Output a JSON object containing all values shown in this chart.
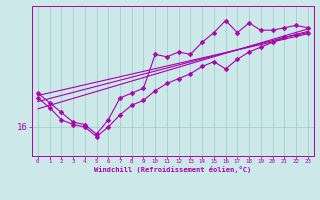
{
  "bg_color": "#cce8e8",
  "line_color": "#aa00aa",
  "xlabel": "Windchill (Refroidissement éolien,°C)",
  "ylabel_tick": "16",
  "xlim": [
    -0.5,
    23.5
  ],
  "ylim": [
    14.8,
    21.0
  ],
  "ytick_val": 16,
  "grid_color": "#99cccc",
  "line_width": 0.8,
  "marker": "D",
  "marker_size": 2.5,
  "trend1_x": [
    0,
    23
  ],
  "trend1_y": [
    17.3,
    19.85
  ],
  "trend2_x": [
    0,
    23
  ],
  "trend2_y": [
    17.05,
    19.95
  ],
  "trend3_x": [
    0,
    23
  ],
  "trend3_y": [
    16.75,
    20.05
  ],
  "data_line1_x": [
    0,
    1,
    2,
    3,
    4,
    5,
    6,
    7,
    8,
    9,
    10,
    11,
    12,
    13,
    14,
    15,
    16,
    17,
    18,
    19,
    20,
    21,
    22,
    23
  ],
  "data_line1_y": [
    17.4,
    17.0,
    16.6,
    16.2,
    16.1,
    15.7,
    16.3,
    17.2,
    17.4,
    17.6,
    19.0,
    18.9,
    19.1,
    19.0,
    19.5,
    19.9,
    20.4,
    19.9,
    20.3,
    20.0,
    20.0,
    20.1,
    20.2,
    20.1
  ],
  "data_line2_x": [
    0,
    1,
    2,
    3,
    4,
    5,
    6,
    7,
    8,
    9,
    10,
    11,
    12,
    13,
    14,
    15,
    16,
    17,
    18,
    19,
    20,
    21,
    22,
    23
  ],
  "data_line2_y": [
    17.2,
    16.8,
    16.3,
    16.1,
    16.0,
    15.6,
    16.0,
    16.5,
    16.9,
    17.1,
    17.5,
    17.8,
    18.0,
    18.2,
    18.5,
    18.7,
    18.4,
    18.8,
    19.1,
    19.3,
    19.5,
    19.7,
    19.8,
    19.9
  ]
}
